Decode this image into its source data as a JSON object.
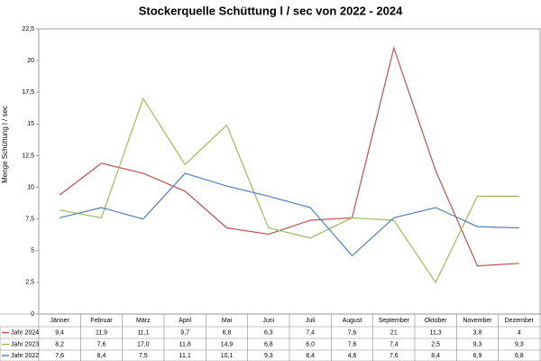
{
  "chart_data": {
    "type": "line",
    "title": "Stockerquelle Schüttung l / sec von 2022 - 2024",
    "y_label": "Menge Schüttung l / sec",
    "categories": [
      "Jänner",
      "Februar",
      "März",
      "April",
      "Mai",
      "Juni",
      "Juli",
      "August",
      "September",
      "Oktober",
      "November",
      "Dezember"
    ],
    "series": [
      {
        "name": "Jahr 2024",
        "color": "#c0504d",
        "values": [
          9.4,
          11.9,
          11.1,
          9.7,
          6.8,
          6.3,
          7.4,
          7.6,
          21,
          11.3,
          3.8,
          4
        ],
        "value_labels": [
          "9,4",
          "11,9",
          "11,1",
          "9,7",
          "6,8",
          "6,3",
          "7,4",
          "7,6",
          "21",
          "11,3",
          "3,8",
          "4"
        ]
      },
      {
        "name": "Jahr 2023",
        "color": "#9bbb59",
        "values": [
          8.2,
          7.6,
          17.0,
          11.8,
          14.9,
          6.8,
          6.0,
          7.6,
          7.4,
          2.5,
          9.3,
          9.3
        ],
        "value_labels": [
          "8,2",
          "7,6",
          "17,0",
          "11,8",
          "14,9",
          "6,8",
          "6,0",
          "7,6",
          "7,4",
          "2,5",
          "9,3",
          "9,3"
        ]
      },
      {
        "name": "Jahr 2022",
        "color": "#4f81bd",
        "values": [
          7.6,
          8.4,
          7.5,
          11.1,
          10.1,
          9.3,
          8.4,
          4.6,
          7.6,
          8.4,
          6.9,
          6.8
        ],
        "value_labels": [
          "7,6",
          "8,4",
          "7,5",
          "11,1",
          "10,1",
          "9,3",
          "8,4",
          "4,6",
          "7,6",
          "8,4",
          "6,9",
          "6,8"
        ]
      }
    ],
    "ylim": [
      0,
      22.5
    ],
    "yticks": [
      0,
      {
        "value": 2.5,
        "label": "2,5"
      },
      5,
      {
        "value": 7.5,
        "label": "7,5"
      },
      10,
      {
        "value": 12.5,
        "label": "12,5"
      },
      15,
      {
        "value": 17.5,
        "label": "17,5"
      },
      20,
      {
        "value": 22.5,
        "label": "22,5"
      }
    ],
    "grid": false
  }
}
